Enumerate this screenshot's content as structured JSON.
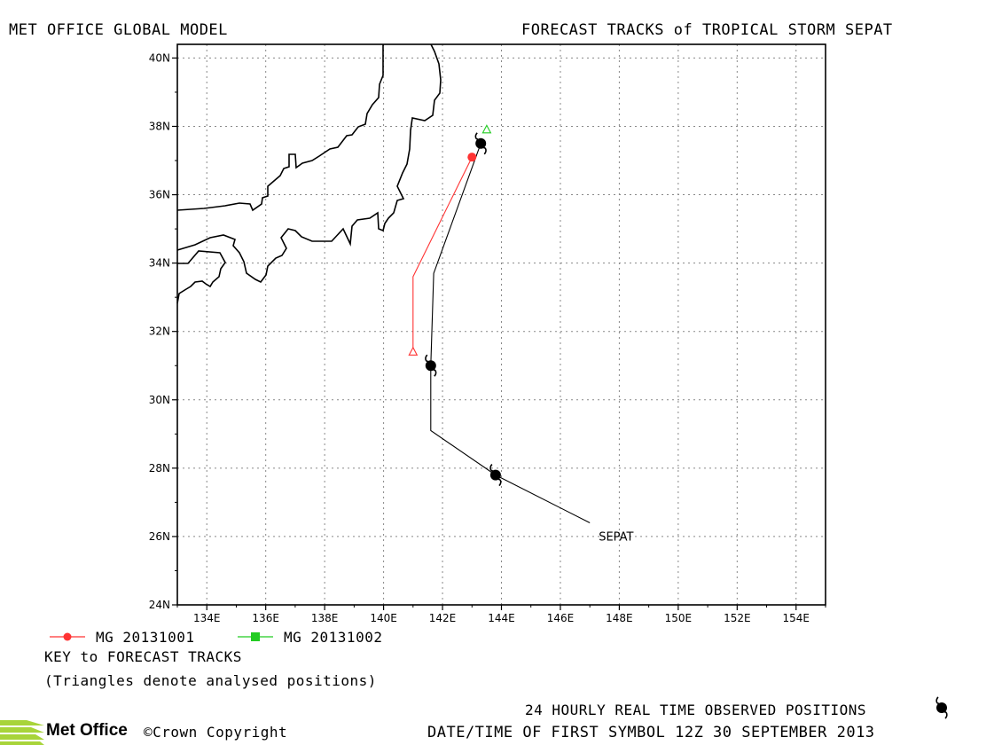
{
  "header": {
    "left_title": "MET OFFICE GLOBAL MODEL",
    "right_title": "FORECAST TRACKS of TROPICAL STORM SEPAT"
  },
  "map": {
    "lat_labels": [
      "40N",
      "38N",
      "36N",
      "34N",
      "32N",
      "30N",
      "28N",
      "26N",
      "24N"
    ],
    "lon_labels": [
      "134E",
      "136E",
      "138E",
      "140E",
      "142E",
      "144E",
      "146E",
      "148E",
      "150E",
      "152E",
      "154E"
    ],
    "storm_label": "SEPAT",
    "colors": {
      "track_observed": "#000000",
      "track_20131001": "#ff3333",
      "track_20131002": "#22cc22",
      "grid": "#888888"
    }
  },
  "chart_data": {
    "type": "scatter",
    "xlabel": "",
    "ylabel": "",
    "xlim": [
      133,
      155
    ],
    "ylim": [
      24,
      40.4
    ],
    "grid": true,
    "series": [
      {
        "name": "observed",
        "points": [
          [
            147.0,
            26.4
          ],
          [
            143.8,
            27.8
          ],
          [
            141.6,
            29.1
          ],
          [
            141.6,
            31.0
          ],
          [
            141.7,
            33.7
          ],
          [
            143.3,
            37.5
          ]
        ],
        "symbol_points": [
          [
            143.8,
            27.8
          ],
          [
            141.6,
            31.0
          ],
          [
            143.3,
            37.5
          ]
        ]
      },
      {
        "name": "MG 20131001",
        "points": [
          [
            141.0,
            31.4
          ],
          [
            141.0,
            33.6
          ],
          [
            143.0,
            37.1
          ]
        ]
      },
      {
        "name": "MG 20131002",
        "points": [
          [
            143.5,
            37.9
          ]
        ]
      }
    ]
  },
  "legend": {
    "item1_label": "MG 20131001",
    "item2_label": "MG 20131002",
    "key_title": "KEY to FORECAST TRACKS",
    "key_note": "(Triangles denote analysed positions)"
  },
  "footer": {
    "logo_text": "Met Office",
    "copyright": "©Crown Copyright",
    "observed_note": "24 HOURLY REAL TIME OBSERVED POSITIONS",
    "datetime_note": "DATE/TIME OF FIRST SYMBOL 12Z 30 SEPTEMBER 2013"
  }
}
